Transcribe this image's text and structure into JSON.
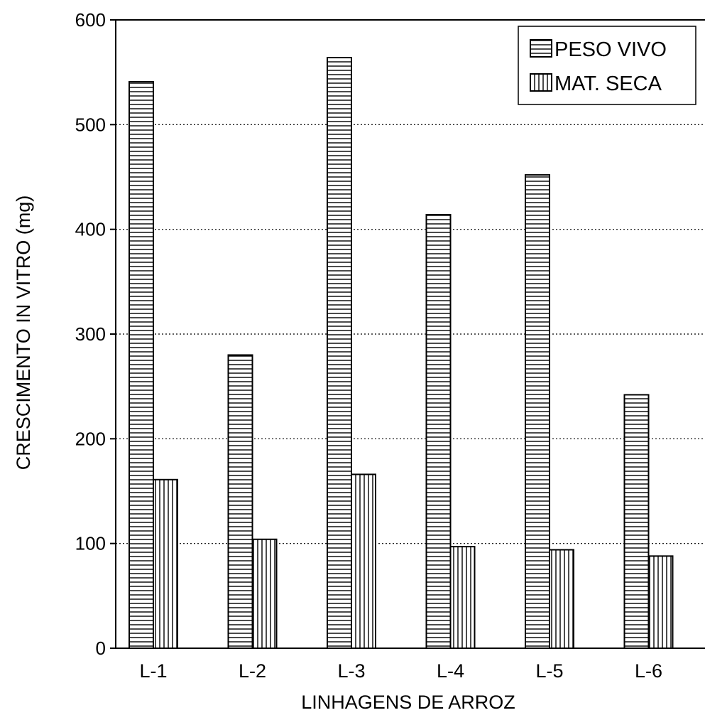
{
  "chart_data": {
    "type": "bar",
    "categories": [
      "L-1",
      "L-2",
      "L-3",
      "L-4",
      "L-5",
      "L-6"
    ],
    "series": [
      {
        "name": "PESO VIVO",
        "pattern": "horizontal-stripes",
        "values": [
          541,
          280,
          564,
          414,
          452,
          242
        ]
      },
      {
        "name": "MAT. SECA",
        "pattern": "vertical-stripes",
        "values": [
          161,
          104,
          166,
          97,
          94,
          88
        ]
      }
    ],
    "ylim": [
      0,
      600
    ],
    "yticks": [
      0,
      100,
      200,
      300,
      400,
      500,
      600
    ],
    "xlabel": "LINHAGENS DE ARROZ",
    "ylabel": "CRESCIMENTO IN VITRO (mg)",
    "grid": true,
    "legend_position": "top-right",
    "colors": {
      "bar_fill": "#ffffff",
      "stroke": "#000000"
    }
  }
}
